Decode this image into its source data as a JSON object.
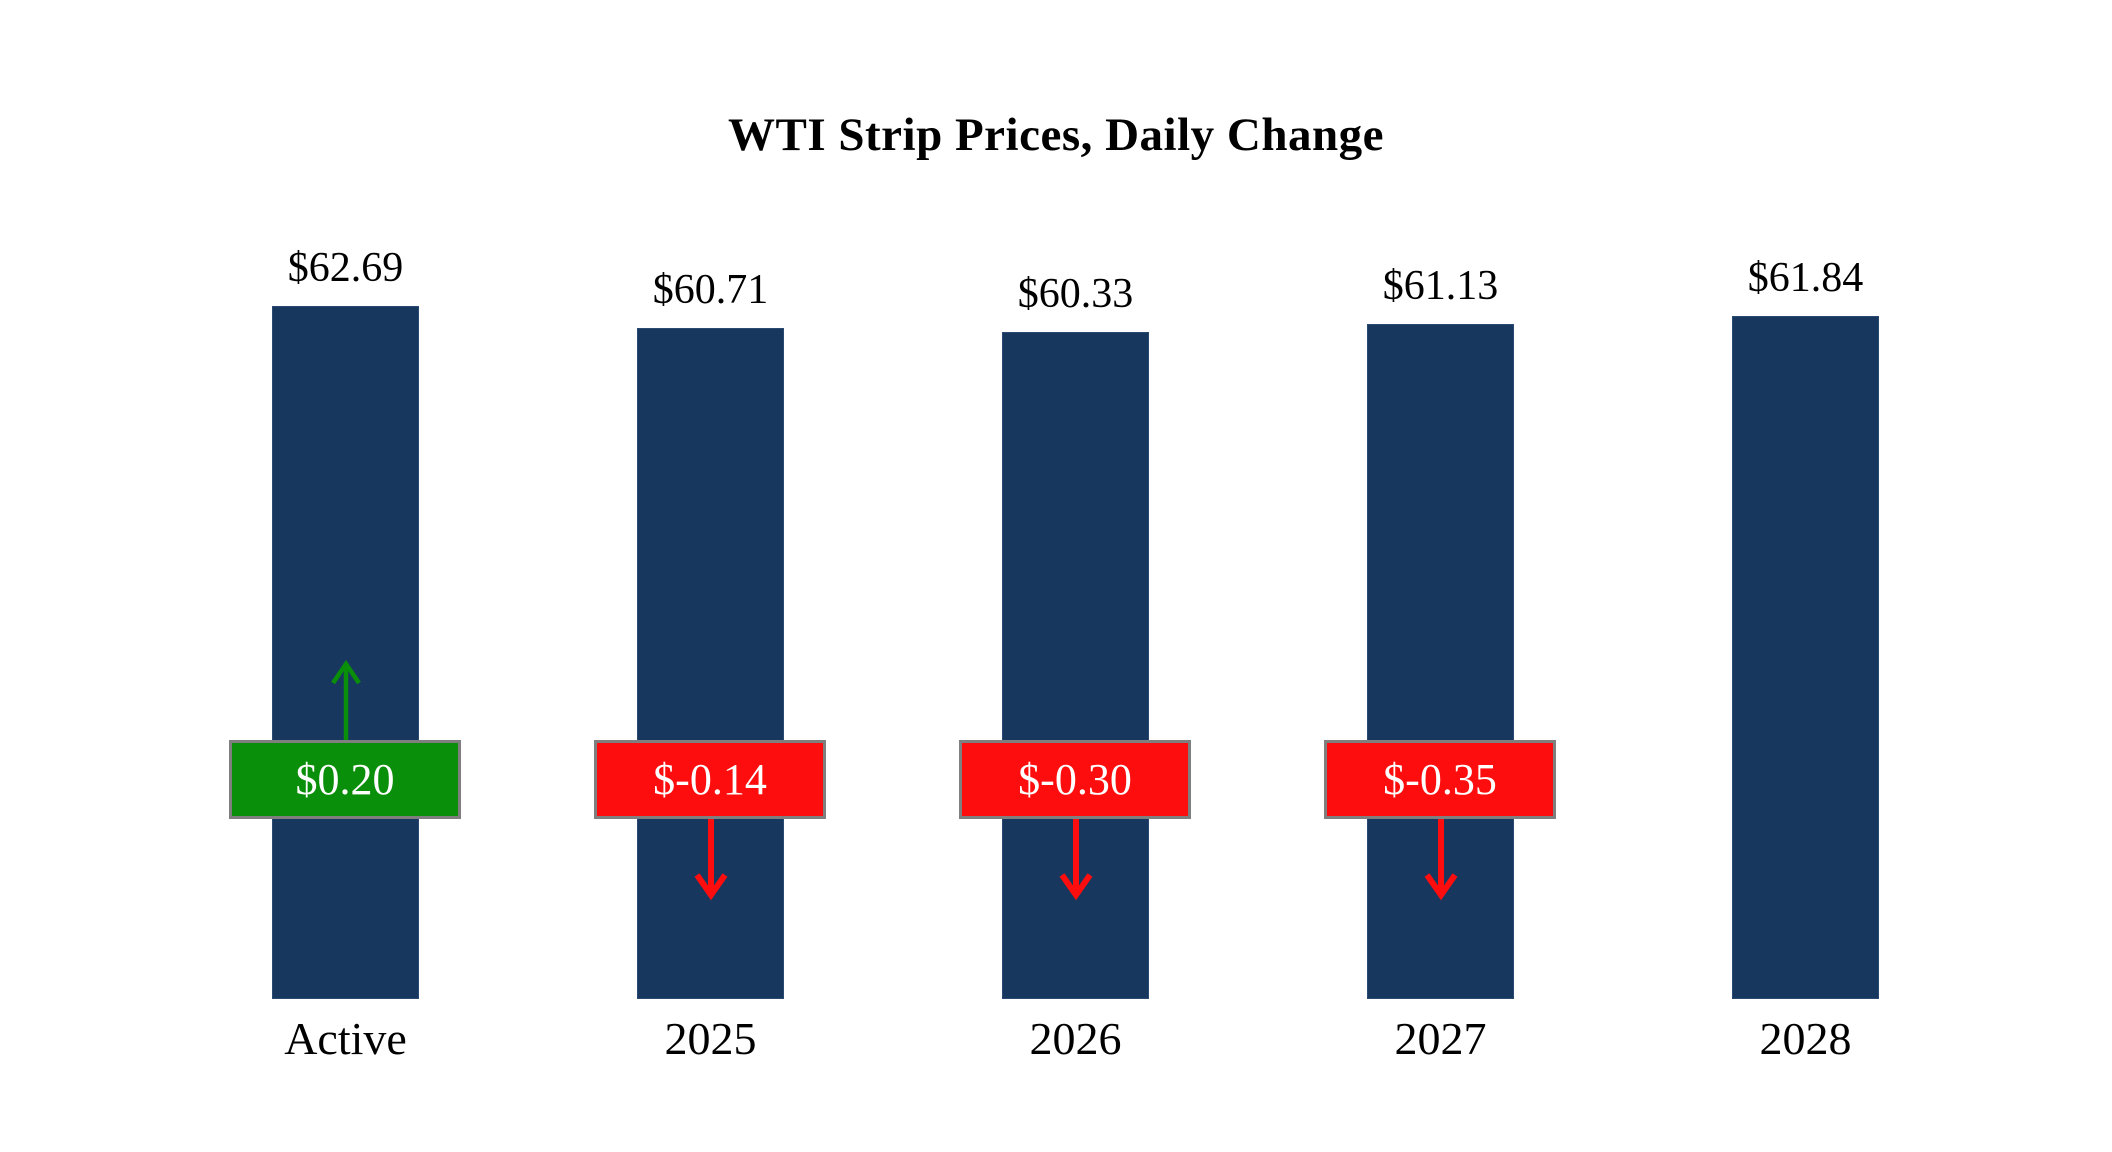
{
  "chart_data": {
    "type": "bar",
    "title": "WTI Strip Prices, Daily Change",
    "categories": [
      "Active",
      "2025",
      "2026",
      "2027",
      "2028"
    ],
    "values": [
      62.69,
      60.71,
      60.33,
      61.13,
      61.84
    ],
    "price_labels": [
      "$62.69",
      "$60.71",
      "$60.33",
      "$61.13",
      "$61.84"
    ],
    "changes": [
      0.2,
      -0.14,
      -0.3,
      -0.35,
      null
    ],
    "change_labels": [
      "$0.20",
      "$-0.14",
      "$-0.30",
      "$-0.35",
      ""
    ],
    "ylim": [
      0,
      65
    ],
    "xlabel": "",
    "ylabel": "",
    "grid": false,
    "legend": false,
    "bar_color": "#17375e",
    "up_color": "#0a8f0a",
    "down_color": "#fd0d0d",
    "badge_border_color": "#7f7f7f",
    "badge_text_color": "#ffffff"
  }
}
